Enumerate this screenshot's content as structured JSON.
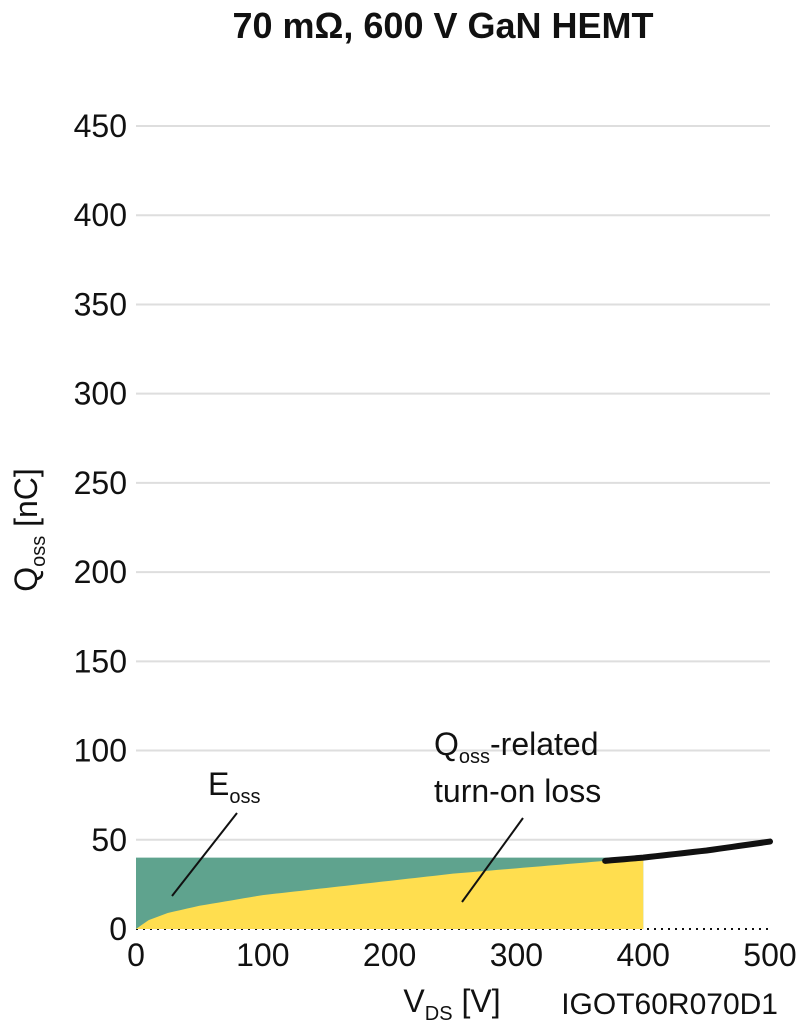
{
  "chart_data": {
    "type": "area",
    "title": "70 mΩ, 600 V GaN HEMT",
    "xlabel": {
      "main": "V",
      "sub": "DS",
      "unit": " [V]"
    },
    "ylabel": {
      "main": "Q",
      "sub": "oss",
      "unit": " [nC]"
    },
    "xlim": [
      0,
      500
    ],
    "ylim": [
      0,
      450
    ],
    "x_ticks": [
      0,
      100,
      200,
      300,
      400,
      500
    ],
    "y_ticks": [
      0,
      50,
      100,
      150,
      200,
      250,
      300,
      350,
      400,
      450
    ],
    "grid": "horizontal",
    "series": [
      {
        "x": [
          0,
          10,
          25,
          50,
          75,
          100,
          150,
          200,
          250,
          300,
          350,
          400,
          450,
          500
        ],
        "values": [
          0,
          5,
          9,
          13,
          16,
          19,
          23,
          27,
          31,
          34,
          37,
          40,
          44,
          49
        ]
      }
    ],
    "operating_point": {
      "x": 400,
      "y": 40
    },
    "annotations": [
      {
        "label_main": "E",
        "label_sub": "oss",
        "lines": []
      },
      {
        "label_main": "Q",
        "label_sub": "oss",
        "label_rest": "-related",
        "lines": [
          "turn-on loss"
        ]
      }
    ],
    "colors": {
      "eoss": "#5fa38e",
      "qoss_loss": "#ffde4f",
      "curve": "#111111",
      "grid": "#dedede"
    }
  },
  "part_number": "IGOT60R070D1"
}
